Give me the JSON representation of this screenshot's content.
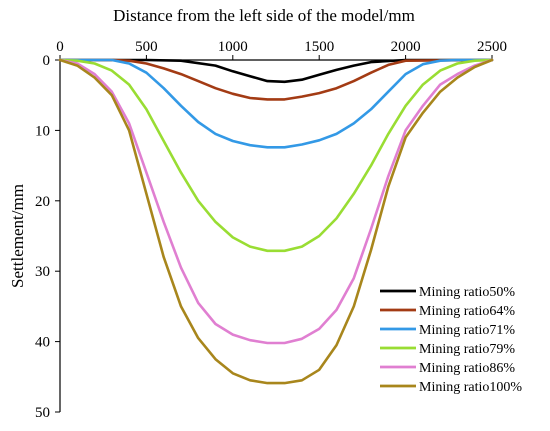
{
  "chart_data": {
    "type": "line",
    "xlabel": "Distance from the left side of the model/mm",
    "ylabel": "Settlement/mm",
    "xlim": [
      0,
      2500
    ],
    "ylim": [
      0,
      50
    ],
    "y_inverted": true,
    "x_axis_position": "top",
    "xticks": [
      0,
      500,
      1000,
      1500,
      2000,
      2500
    ],
    "yticks": [
      0,
      10,
      20,
      30,
      40,
      50
    ],
    "grid": false,
    "legend_position": "bottom-right",
    "series": [
      {
        "name": "Mining ratio50%",
        "color": "#000000",
        "x": [
          0,
          300,
          500,
          700,
          900,
          1000,
          1100,
          1200,
          1300,
          1400,
          1500,
          1600,
          1700,
          1800,
          2000,
          2500
        ],
        "y": [
          0,
          0,
          0,
          0.1,
          0.8,
          1.6,
          2.3,
          3.0,
          3.1,
          2.8,
          2.1,
          1.4,
          0.8,
          0.3,
          0,
          0
        ]
      },
      {
        "name": "Mining ratio64%",
        "color": "#a33b14",
        "x": [
          0,
          300,
          400,
          500,
          600,
          700,
          800,
          900,
          1000,
          1100,
          1200,
          1300,
          1400,
          1500,
          1600,
          1700,
          1800,
          1900,
          2000,
          2500
        ],
        "y": [
          0,
          0,
          0.1,
          0.5,
          1.2,
          2.0,
          3.0,
          4.0,
          4.8,
          5.4,
          5.6,
          5.6,
          5.2,
          4.7,
          4.0,
          3.0,
          1.8,
          0.7,
          0.1,
          0
        ]
      },
      {
        "name": "Mining ratio71%",
        "color": "#3399e6",
        "x": [
          0,
          300,
          400,
          500,
          600,
          700,
          800,
          900,
          1000,
          1100,
          1200,
          1300,
          1400,
          1500,
          1600,
          1700,
          1800,
          1900,
          2000,
          2100,
          2200,
          2300,
          2500
        ],
        "y": [
          0,
          0,
          0.5,
          1.8,
          4.0,
          6.5,
          8.8,
          10.5,
          11.5,
          12.1,
          12.4,
          12.4,
          12.0,
          11.4,
          10.5,
          9.0,
          7.0,
          4.5,
          2.0,
          0.6,
          0.1,
          0,
          0
        ]
      },
      {
        "name": "Mining ratio79%",
        "color": "#99dd33",
        "x": [
          0,
          100,
          200,
          300,
          400,
          500,
          600,
          700,
          800,
          900,
          1000,
          1100,
          1200,
          1300,
          1400,
          1500,
          1600,
          1700,
          1800,
          1900,
          2000,
          2100,
          2200,
          2300,
          2400,
          2500
        ],
        "y": [
          0,
          0.1,
          0.5,
          1.5,
          3.5,
          7.0,
          11.5,
          16.0,
          20.0,
          23.0,
          25.2,
          26.5,
          27.1,
          27.1,
          26.5,
          25.0,
          22.5,
          19.0,
          15.0,
          10.5,
          6.5,
          3.5,
          1.5,
          0.5,
          0.1,
          0
        ]
      },
      {
        "name": "Mining ratio86%",
        "color": "#e07fd1",
        "x": [
          0,
          100,
          200,
          300,
          400,
          500,
          600,
          700,
          800,
          900,
          1000,
          1100,
          1200,
          1300,
          1400,
          1500,
          1600,
          1700,
          1800,
          1900,
          2000,
          2100,
          2200,
          2300,
          2400,
          2500
        ],
        "y": [
          0,
          0.5,
          2.0,
          4.5,
          9.0,
          16.0,
          23.0,
          29.5,
          34.5,
          37.5,
          39.0,
          39.8,
          40.2,
          40.2,
          39.6,
          38.2,
          35.5,
          31.0,
          24.0,
          16.5,
          10.0,
          6.5,
          3.5,
          2.0,
          0.8,
          0
        ]
      },
      {
        "name": "Mining ratio100%",
        "color": "#a8861c",
        "x": [
          0,
          100,
          200,
          300,
          400,
          500,
          600,
          700,
          800,
          900,
          1000,
          1100,
          1200,
          1300,
          1400,
          1500,
          1600,
          1700,
          1800,
          1900,
          2000,
          2100,
          2200,
          2300,
          2400,
          2500
        ],
        "y": [
          0,
          0.8,
          2.5,
          5.0,
          10.0,
          19.0,
          28.0,
          35.0,
          39.5,
          42.5,
          44.5,
          45.5,
          45.9,
          45.9,
          45.5,
          44.0,
          40.5,
          35.0,
          27.0,
          18.0,
          11.0,
          7.5,
          4.5,
          2.5,
          1.0,
          0
        ]
      }
    ]
  }
}
